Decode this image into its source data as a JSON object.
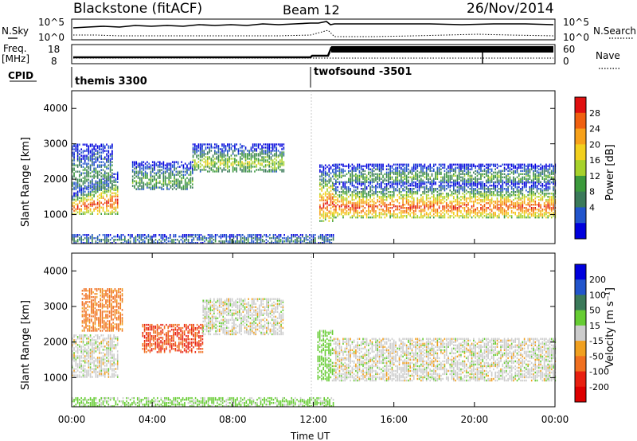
{
  "header": {
    "station": "Blackstone (fitACF)",
    "beam": "Beam 12",
    "date": "26/Nov/2014"
  },
  "strip": {
    "nsky_label": "N.Sky",
    "nsearch_label": "N.Search",
    "noise_ticks_left": [
      "10^5",
      "10^0"
    ],
    "noise_ticks_right": [
      "10^5",
      "10^0"
    ],
    "freq_label_1": "Freq.",
    "freq_label_2": "[MHz]",
    "freq_ticks": [
      "18",
      "8"
    ],
    "nave_label": "Nave",
    "nave_ticks": [
      "60",
      "0"
    ],
    "cpid_label": "CPID",
    "cpid_1": "themis 3300",
    "cpid_2": "twofsound -3501"
  },
  "chart_data": [
    {
      "type": "heatmap",
      "panel": "power",
      "xlabel": "Time UT",
      "ylabel": "Slant Range [km]",
      "xlim": [
        0,
        24
      ],
      "ylim": [
        180,
        4500
      ],
      "yticks": [
        "1000",
        "2000",
        "3000",
        "4000"
      ],
      "colorbar": {
        "label": "Power [dB]",
        "ticks": [
          "4",
          "8",
          "12",
          "16",
          "20",
          "24",
          "28"
        ],
        "colors": [
          "#0000dd",
          "#2255cc",
          "#3b7a5a",
          "#3c9a3c",
          "#a7d22b",
          "#f2d01e",
          "#f7a11a",
          "#f06010",
          "#e01010"
        ]
      },
      "echo_bands": [
        {
          "t_start": 0.0,
          "t_end": 2.3,
          "range_start": 1000,
          "range_end": 1600,
          "range_end_at_end": 2200,
          "peak_db": 28
        },
        {
          "t_start": 0.0,
          "t_end": 2.0,
          "range_start": 1700,
          "range_end": 3000,
          "peak_db": 10
        },
        {
          "t_start": 3.0,
          "t_end": 6.0,
          "range_start": 1700,
          "range_end": 2500,
          "peak_db": 12
        },
        {
          "t_start": 6.0,
          "t_end": 10.5,
          "range_start": 2200,
          "range_end": 3000,
          "peak_db": 16
        },
        {
          "t_start": 12.3,
          "t_end": 13.0,
          "range_start": 800,
          "range_end": 2400,
          "peak_db": 28
        },
        {
          "t_start": 13.0,
          "t_end": 24.0,
          "range_start": 900,
          "range_end": 1900,
          "peak_db": 28
        },
        {
          "t_start": 13.0,
          "t_end": 24.0,
          "range_start": 1900,
          "range_end": 2400,
          "peak_db": 12
        },
        {
          "t_start": 0.0,
          "t_end": 13.0,
          "range_start": 180,
          "range_end": 450,
          "peak_db": 8
        }
      ]
    },
    {
      "type": "heatmap",
      "panel": "velocity",
      "xlabel": "Time UT",
      "ylabel": "Slant Range [km]",
      "xlim": [
        0,
        24
      ],
      "ylim": [
        180,
        4500
      ],
      "xticks": [
        "00:00",
        "04:00",
        "08:00",
        "12:00",
        "16:00",
        "20:00",
        "00:00"
      ],
      "yticks": [
        "1000",
        "2000",
        "3000",
        "4000"
      ],
      "colorbar": {
        "label": "Velocity [m s⁻¹]",
        "ticks": [
          "200",
          "100",
          "50",
          "15",
          "-15",
          "-50",
          "-100",
          "-200"
        ],
        "colors": [
          "#0000dd",
          "#2255cc",
          "#3b7a5a",
          "#66cc33",
          "#cccccc",
          "#f0a020",
          "#f07020",
          "#e82010",
          "#dd0000"
        ]
      },
      "echo_bands": [
        {
          "t_start": 0.0,
          "t_end": 2.3,
          "range_start": 1000,
          "range_end": 2200,
          "velocity": 0
        },
        {
          "t_start": 0.5,
          "t_end": 2.5,
          "range_start": 2300,
          "range_end": 3500,
          "velocity": -60
        },
        {
          "t_start": 3.5,
          "t_end": 6.5,
          "range_start": 1700,
          "range_end": 2500,
          "velocity": -100
        },
        {
          "t_start": 6.5,
          "t_end": 10.5,
          "range_start": 2200,
          "range_end": 3200,
          "velocity": 0
        },
        {
          "t_start": 12.2,
          "t_end": 13.0,
          "range_start": 900,
          "range_end": 2300,
          "velocity": 30
        },
        {
          "t_start": 13.0,
          "t_end": 24.0,
          "range_start": 900,
          "range_end": 2100,
          "velocity": 0
        },
        {
          "t_start": 0.0,
          "t_end": 13.0,
          "range_start": 180,
          "range_end": 450,
          "velocity": 25
        }
      ]
    }
  ]
}
